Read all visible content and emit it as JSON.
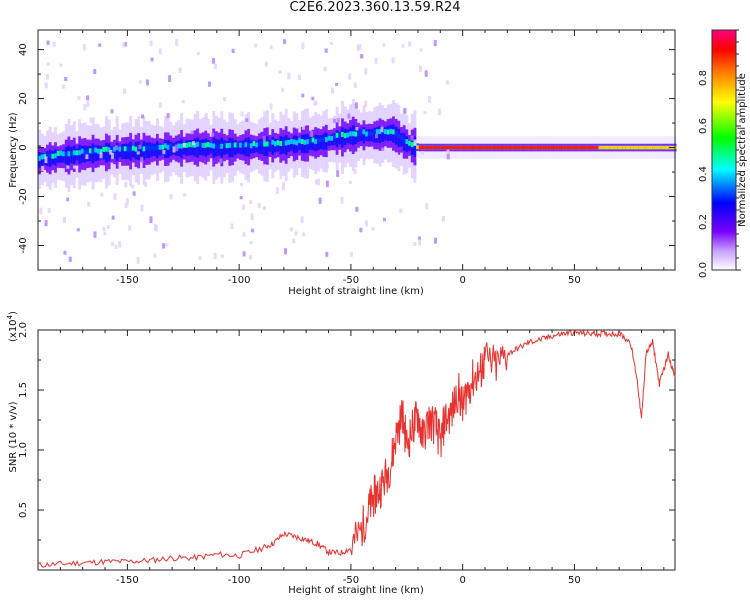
{
  "figure": {
    "title": "C2E6.2023.360.13.59.R24"
  },
  "colors": {
    "snr_line": "#e8322f",
    "colormap": [
      "#ffffff",
      "#7a00ff",
      "#0000ff",
      "#00ffff",
      "#00ff00",
      "#ffff00",
      "#ff7f00",
      "#ff0000",
      "#ff0080"
    ]
  },
  "chart_data": [
    {
      "type": "heatmap",
      "xlabel": "Height of straight line (km)",
      "ylabel": "Frequency (Hz)",
      "xlim": [
        -190,
        95
      ],
      "ylim": [
        -50,
        48
      ],
      "xticks": [
        -150,
        -100,
        -50,
        0,
        50
      ],
      "xtick_labels": [
        "-150",
        "-100",
        "-50",
        "0",
        "50"
      ],
      "yticks": [
        -40,
        -20,
        0,
        20,
        40
      ],
      "ytick_labels": [
        "-40",
        "-20",
        "0",
        "20",
        "40"
      ],
      "grid": false,
      "ridge_center_hz": [
        {
          "x": -190,
          "y": -5
        },
        {
          "x": -175,
          "y": -3
        },
        {
          "x": -160,
          "y": -2
        },
        {
          "x": -140,
          "y": -1
        },
        {
          "x": -120,
          "y": 0
        },
        {
          "x": -100,
          "y": 0
        },
        {
          "x": -80,
          "y": 1
        },
        {
          "x": -65,
          "y": 2
        },
        {
          "x": -50,
          "y": 5
        },
        {
          "x": -40,
          "y": 5
        },
        {
          "x": -32,
          "y": 6
        },
        {
          "x": -25,
          "y": 1
        },
        {
          "x": -20,
          "y": 0
        },
        {
          "x": 0,
          "y": 0
        },
        {
          "x": 10,
          "y": 0
        },
        {
          "x": 50,
          "y": 0
        },
        {
          "x": 80,
          "y": 0
        },
        {
          "x": 95,
          "y": 0
        }
      ],
      "colorbar": {
        "label": "Normalized spectral amplitude",
        "range": [
          0.0,
          1.0
        ],
        "ticks": [
          0.0,
          0.2,
          0.4,
          0.6,
          0.8
        ],
        "tick_labels": [
          "0.0",
          "0.2",
          "0.4",
          "0.6",
          "0.8"
        ]
      }
    },
    {
      "type": "line",
      "xlabel": "Height of straight line (km)",
      "ylabel": "SNR (10 * v/v)",
      "y_multiplier_label": "(x10",
      "y_multiplier_exp": "4",
      "y_multiplier_close": ")",
      "xlim": [
        -190,
        95
      ],
      "ylim": [
        0,
        2.0
      ],
      "xticks": [
        -150,
        -100,
        -50,
        0,
        50
      ],
      "xtick_labels": [
        "-150",
        "-100",
        "-50",
        "0",
        "50"
      ],
      "yticks": [
        0.5,
        1.0,
        1.5,
        2.0
      ],
      "ytick_labels": [
        "0.5",
        "1.0",
        "1.5",
        "2.0"
      ],
      "grid": false,
      "series": [
        {
          "x": [
            -190,
            -180,
            -170,
            -160,
            -150,
            -140,
            -130,
            -120,
            -110,
            -100,
            -90,
            -85,
            -80,
            -75,
            -70,
            -65,
            -60,
            -55,
            -50,
            -45,
            -42,
            -40,
            -38,
            -35,
            -32,
            -30,
            -27,
            -25,
            -22,
            -20,
            -18,
            -15,
            -12,
            -10,
            -8,
            -5,
            -2,
            0,
            2,
            5,
            8,
            10,
            15,
            20,
            25,
            30,
            35,
            40,
            45,
            50,
            55,
            60,
            65,
            70,
            75,
            78,
            80,
            82,
            85,
            88,
            92,
            95
          ],
          "y": [
            0.04,
            0.05,
            0.06,
            0.07,
            0.07,
            0.08,
            0.1,
            0.1,
            0.13,
            0.12,
            0.18,
            0.22,
            0.3,
            0.28,
            0.25,
            0.22,
            0.15,
            0.14,
            0.18,
            0.35,
            0.5,
            0.6,
            0.65,
            0.75,
            0.9,
            1.1,
            1.3,
            1.05,
            1.2,
            1.3,
            1.1,
            1.25,
            1.2,
            1.05,
            1.25,
            1.3,
            1.5,
            1.35,
            1.5,
            1.6,
            1.65,
            1.75,
            1.7,
            1.8,
            1.85,
            1.9,
            1.92,
            1.95,
            1.97,
            1.98,
            1.97,
            1.97,
            1.97,
            1.97,
            1.9,
            1.6,
            1.25,
            1.8,
            1.9,
            1.55,
            1.8,
            1.6
          ]
        }
      ]
    }
  ]
}
